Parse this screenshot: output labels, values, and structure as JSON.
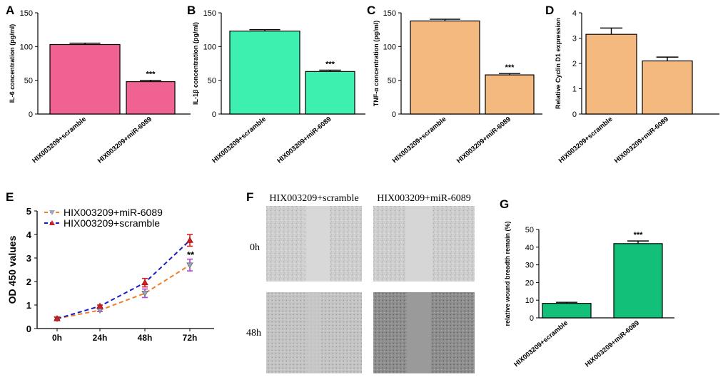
{
  "chart_data": [
    {
      "panel": "A",
      "type": "bar",
      "categories": [
        "HIX003209+scramble",
        "HIX003209+miR-6089"
      ],
      "values": [
        103,
        48
      ],
      "errors": [
        2,
        2
      ],
      "ylabel": "IL-6 concentration (pg/ml)",
      "ylim": [
        0,
        150
      ],
      "yticks": [
        0,
        50,
        100,
        150
      ],
      "color": "#f06292",
      "significance": [
        "",
        "***"
      ]
    },
    {
      "panel": "B",
      "type": "bar",
      "categories": [
        "HIX003209+scramble",
        "HIX003209+miR-6089"
      ],
      "values": [
        123,
        63
      ],
      "errors": [
        2,
        2
      ],
      "ylabel": "IL-1β concentration (pg/ml)",
      "ylim": [
        0,
        150
      ],
      "yticks": [
        0,
        50,
        100,
        150
      ],
      "color": "#3ef0b0",
      "significance": [
        "",
        "***"
      ]
    },
    {
      "panel": "C",
      "type": "bar",
      "categories": [
        "HIX003209+scramble",
        "HIX003209+miR-6089"
      ],
      "values": [
        138,
        58
      ],
      "errors": [
        2.5,
        2
      ],
      "ylabel": "TNF-α concentration (pg/ml)",
      "ylim": [
        0,
        150
      ],
      "yticks": [
        0,
        50,
        100,
        150
      ],
      "color": "#f4b97f",
      "significance": [
        "",
        "***"
      ]
    },
    {
      "panel": "D",
      "type": "bar",
      "categories": [
        "HIX003209+scramble",
        "HIX003209+miR-6089"
      ],
      "values": [
        3.15,
        2.1
      ],
      "errors": [
        0.25,
        0.15
      ],
      "ylabel": "Relative Cyclin D1 expression",
      "ylim": [
        0,
        4
      ],
      "yticks": [
        0,
        1,
        2,
        3,
        4
      ],
      "color": "#f4b97f",
      "significance": [
        "",
        ""
      ]
    },
    {
      "panel": "E",
      "type": "line",
      "x": [
        "0h",
        "24h",
        "48h",
        "72h"
      ],
      "ylabel": "OD 450 values",
      "ylim": [
        0,
        5
      ],
      "yticks": [
        0,
        1,
        2,
        3,
        4,
        5
      ],
      "series": [
        {
          "name": "HIX003209+miR-6089",
          "values": [
            0.42,
            0.78,
            1.5,
            2.7
          ],
          "errors": [
            0.05,
            0.06,
            0.18,
            0.25
          ],
          "color": "#f07f2a",
          "marker": "triangle-down"
        },
        {
          "name": "HIX003209+scramble",
          "values": [
            0.42,
            0.95,
            1.95,
            3.75
          ],
          "errors": [
            0.05,
            0.05,
            0.18,
            0.25
          ],
          "color": "#1a1ac8",
          "marker": "triangle-up"
        }
      ],
      "annotation": "**"
    },
    {
      "panel": "G",
      "type": "bar",
      "categories": [
        "HIX003209+scramble",
        "HIX003209+miR-6089"
      ],
      "values": [
        8.2,
        42
      ],
      "errors": [
        0.6,
        1.5
      ],
      "ylabel": "relative wound breadth remain (%)",
      "ylim": [
        0,
        50
      ],
      "yticks": [
        0,
        10,
        20,
        30,
        40,
        50
      ],
      "color": "#13c07a",
      "significance": [
        "",
        "***"
      ]
    }
  ],
  "panel_f": {
    "letter": "F",
    "columns": [
      "HIX003209+scramble",
      "HIX003209+miR-6089"
    ],
    "rows": [
      "0h",
      "48h"
    ]
  }
}
